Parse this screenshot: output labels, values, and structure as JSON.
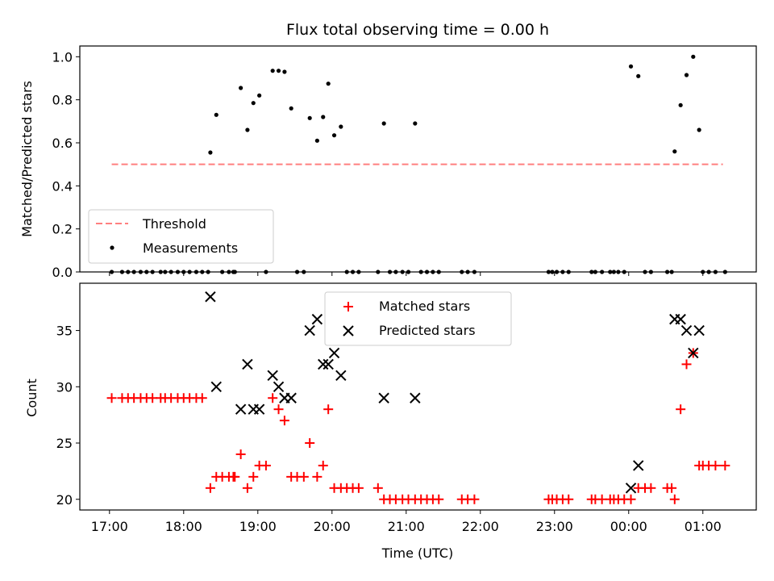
{
  "chart_data": [
    {
      "type": "scatter",
      "title": "Flux total observing time = 0.00 h",
      "xlabel": "",
      "ylabel": "Matched/Predicted stars",
      "xlim": [
        16.6,
        25.72
      ],
      "ylim": [
        0,
        1.05
      ],
      "xticks": [
        17,
        18,
        19,
        20,
        21,
        22,
        23,
        24,
        25
      ],
      "yticks": [
        0.0,
        0.2,
        0.4,
        0.6,
        0.8,
        1.0
      ],
      "ytick_labels": [
        "0.0",
        "0.2",
        "0.4",
        "0.6",
        "0.8",
        "1.0"
      ],
      "legend_position": "lower-left",
      "series": [
        {
          "name": "Threshold",
          "kind": "dashed-line",
          "color": "#ff7f7f",
          "x": [
            17.03,
            25.27
          ],
          "y": [
            0.5,
            0.5
          ]
        },
        {
          "name": "Measurements",
          "kind": "dot",
          "color": "#000000",
          "x": [
            17.03,
            17.17,
            17.25,
            17.33,
            17.42,
            17.5,
            17.58,
            17.69,
            17.75,
            17.83,
            17.92,
            18.0,
            18.08,
            18.17,
            18.25,
            18.33,
            18.36,
            18.44,
            18.52,
            18.61,
            18.67,
            18.69,
            18.77,
            18.86,
            18.94,
            19.02,
            19.11,
            19.2,
            19.28,
            19.36,
            19.45,
            19.53,
            19.62,
            19.7,
            19.8,
            19.88,
            19.95,
            20.03,
            20.12,
            20.2,
            20.28,
            20.36,
            20.62,
            20.7,
            20.78,
            20.86,
            20.95,
            21.03,
            21.12,
            21.2,
            21.28,
            21.36,
            21.44,
            21.75,
            21.83,
            21.92,
            22.92,
            22.97,
            23.03,
            23.11,
            23.19,
            23.5,
            23.55,
            23.64,
            23.75,
            23.8,
            23.86,
            23.94,
            24.03,
            24.13,
            24.22,
            24.3,
            24.52,
            24.58,
            24.62,
            24.7,
            24.78,
            24.87,
            24.95,
            25.0,
            25.08,
            25.17,
            25.3
          ],
          "y": [
            0,
            0,
            0,
            0,
            0,
            0,
            0,
            0,
            0,
            0,
            0,
            0,
            0,
            0,
            0,
            0,
            0.555,
            0.73,
            0,
            0,
            0,
            0,
            0.855,
            0.66,
            0.785,
            0.82,
            0,
            0.935,
            0.935,
            0.93,
            0.76,
            0,
            0,
            0.715,
            0.61,
            0.72,
            0.875,
            0.635,
            0.675,
            0,
            0,
            0,
            0,
            0.69,
            0,
            0,
            0,
            0,
            0.69,
            0,
            0,
            0,
            0,
            0,
            0,
            0,
            0,
            0,
            0,
            0,
            0,
            0,
            0,
            0,
            0,
            0,
            0,
            0,
            0.955,
            0.91,
            0,
            0,
            0,
            0,
            0.56,
            0.775,
            0.915,
            1.0,
            0.66,
            0,
            0,
            0,
            0
          ]
        }
      ]
    },
    {
      "type": "scatter",
      "title": "",
      "xlabel": "Time (UTC)",
      "ylabel": "Count",
      "xlim": [
        16.6,
        25.72
      ],
      "ylim": [
        19.05,
        39.2
      ],
      "xticks": [
        17,
        18,
        19,
        20,
        21,
        22,
        23,
        24,
        25
      ],
      "xtick_labels": [
        "17:00",
        "18:00",
        "19:00",
        "20:00",
        "21:00",
        "22:00",
        "23:00",
        "00:00",
        "01:00"
      ],
      "yticks": [
        20,
        25,
        30,
        35
      ],
      "ytick_labels": [
        "20",
        "25",
        "30",
        "35"
      ],
      "legend_position": "upper-center",
      "series": [
        {
          "name": "Matched stars",
          "kind": "plus",
          "color": "#ff0000",
          "x": [
            17.03,
            17.17,
            17.25,
            17.33,
            17.42,
            17.5,
            17.58,
            17.69,
            17.75,
            17.83,
            17.92,
            18.0,
            18.08,
            18.17,
            18.25,
            18.36,
            18.44,
            18.52,
            18.61,
            18.67,
            18.69,
            18.77,
            18.86,
            18.94,
            19.02,
            19.11,
            19.2,
            19.28,
            19.36,
            19.45,
            19.53,
            19.62,
            19.7,
            19.8,
            19.88,
            19.95,
            20.03,
            20.12,
            20.2,
            20.28,
            20.36,
            20.62,
            20.7,
            20.78,
            20.86,
            20.95,
            21.03,
            21.12,
            21.2,
            21.28,
            21.36,
            21.44,
            21.75,
            21.83,
            21.92,
            22.92,
            22.97,
            23.03,
            23.11,
            23.19,
            23.5,
            23.55,
            23.64,
            23.75,
            23.8,
            23.86,
            23.94,
            24.03,
            24.13,
            24.22,
            24.3,
            24.52,
            24.58,
            24.62,
            24.7,
            24.78,
            24.87,
            24.95,
            25.0,
            25.08,
            25.17,
            25.3
          ],
          "y": [
            29,
            29,
            29,
            29,
            29,
            29,
            29,
            29,
            29,
            29,
            29,
            29,
            29,
            29,
            29,
            21,
            22,
            22,
            22,
            22,
            22,
            24,
            21,
            22,
            23,
            23,
            29,
            28,
            27,
            22,
            22,
            22,
            25,
            22,
            23,
            28,
            21,
            21,
            21,
            21,
            21,
            21,
            20,
            20,
            20,
            20,
            20,
            20,
            20,
            20,
            20,
            20,
            20,
            20,
            20,
            20,
            20,
            20,
            20,
            20,
            20,
            20,
            20,
            20,
            20,
            20,
            20,
            20,
            21,
            21,
            21,
            21,
            21,
            20,
            28,
            32,
            33,
            23,
            23,
            23,
            23,
            23
          ]
        },
        {
          "name": "Predicted stars",
          "kind": "x",
          "color": "#000000",
          "x": [
            18.36,
            18.44,
            18.77,
            18.86,
            18.94,
            19.02,
            19.2,
            19.28,
            19.36,
            19.45,
            19.7,
            19.8,
            19.88,
            19.95,
            20.03,
            20.12,
            20.7,
            21.12,
            24.03,
            24.13,
            24.62,
            24.7,
            24.78,
            24.87,
            24.95
          ],
          "y": [
            38,
            30,
            28,
            32,
            28,
            28,
            31,
            30,
            29,
            29,
            35,
            36,
            32,
            32,
            33,
            31,
            29,
            29,
            21,
            23,
            36,
            36,
            35,
            33,
            35
          ]
        }
      ]
    }
  ]
}
